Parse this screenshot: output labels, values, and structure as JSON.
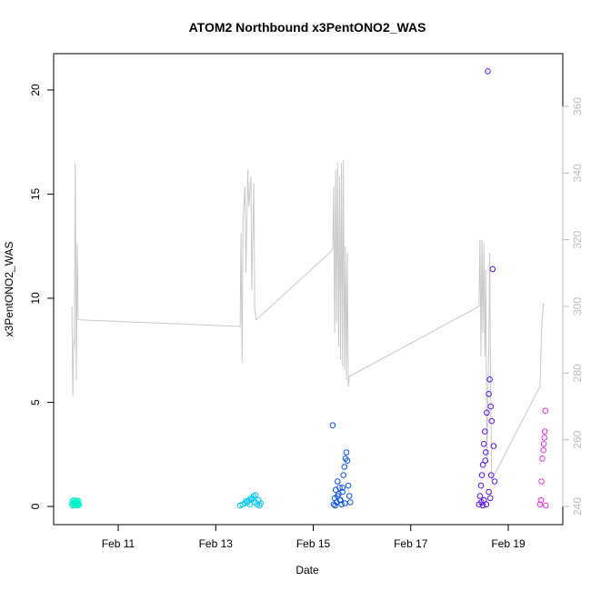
{
  "chart_data": {
    "type": "scatter",
    "title": "ATOM2 Northbound x3PentONO2_WAS",
    "xlabel": "Date",
    "ylabel": "x3PentONO2_WAS",
    "x_ticks": [
      "Feb 11",
      "Feb 13",
      "Feb 15",
      "Feb 17",
      "Feb 19"
    ],
    "x_range_days": [
      10.05,
      19.9
    ],
    "y_ticks": [
      0,
      5,
      10,
      15,
      20
    ],
    "ylim": [
      -0.6,
      21.8
    ],
    "y2_ticks": [
      240,
      260,
      280,
      300,
      320,
      340,
      360
    ],
    "y2lim": [
      237,
      377
    ],
    "grid": false,
    "colors": {
      "line": "#c8c8c8",
      "right_axis": "#bdbdbd"
    },
    "series": [
      {
        "color": "#00f0c8",
        "points": [
          [
            10.05,
            0.1
          ],
          [
            10.06,
            0.25
          ],
          [
            10.07,
            0.05
          ],
          [
            10.08,
            0.15
          ],
          [
            10.09,
            0.3
          ],
          [
            10.1,
            0.2
          ],
          [
            10.11,
            0.08
          ],
          [
            10.12,
            0.18
          ],
          [
            10.13,
            0.12
          ],
          [
            10.14,
            0.28
          ],
          [
            10.15,
            0.05
          ],
          [
            10.16,
            0.22
          ],
          [
            10.17,
            0.15
          ],
          [
            10.18,
            0.1
          ],
          [
            10.19,
            0.26
          ],
          [
            10.2,
            0.06
          ]
        ]
      },
      {
        "color": "#00c8f0",
        "points": [
          [
            13.5,
            0.05
          ],
          [
            13.55,
            0.1
          ],
          [
            13.6,
            0.15
          ],
          [
            13.62,
            0.25
          ],
          [
            13.65,
            0.2
          ],
          [
            13.68,
            0.3
          ],
          [
            13.7,
            0.1
          ],
          [
            13.72,
            0.4
          ],
          [
            13.75,
            0.35
          ],
          [
            13.78,
            0.5
          ],
          [
            13.8,
            0.2
          ],
          [
            13.82,
            0.55
          ],
          [
            13.85,
            0.1
          ],
          [
            13.88,
            0.3
          ],
          [
            13.9,
            0.05
          ],
          [
            13.92,
            0.15
          ]
        ]
      },
      {
        "color": "#0a50f0",
        "points": [
          [
            15.4,
            3.9
          ],
          [
            15.42,
            0.1
          ],
          [
            15.44,
            0.4
          ],
          [
            15.46,
            0.8
          ],
          [
            15.48,
            0.2
          ],
          [
            15.5,
            1.2
          ],
          [
            15.52,
            0.6
          ],
          [
            15.54,
            0.9
          ],
          [
            15.56,
            0.3
          ],
          [
            15.58,
            0.1
          ],
          [
            15.6,
            0.7
          ],
          [
            15.62,
            1.5
          ],
          [
            15.64,
            1.9
          ],
          [
            15.66,
            2.3
          ],
          [
            15.68,
            2.6
          ],
          [
            15.7,
            2.2
          ],
          [
            15.72,
            1.0
          ],
          [
            15.74,
            0.5
          ],
          [
            15.76,
            0.2
          ],
          [
            15.45,
            0.05
          ],
          [
            15.55,
            0.3
          ],
          [
            15.65,
            0.15
          ],
          [
            15.5,
            0.5
          ],
          [
            15.6,
            0.9
          ]
        ]
      },
      {
        "color": "#5a10f0",
        "points": [
          [
            18.4,
            0.1
          ],
          [
            18.42,
            0.5
          ],
          [
            18.44,
            1.0
          ],
          [
            18.46,
            1.5
          ],
          [
            18.48,
            2.0
          ],
          [
            18.5,
            3.0
          ],
          [
            18.52,
            3.6
          ],
          [
            18.54,
            2.6
          ],
          [
            18.56,
            4.5
          ],
          [
            18.58,
            20.9
          ],
          [
            18.6,
            5.4
          ],
          [
            18.62,
            6.1
          ],
          [
            18.64,
            4.8
          ],
          [
            18.66,
            4.1
          ],
          [
            18.68,
            11.4
          ],
          [
            18.7,
            2.9
          ],
          [
            18.72,
            1.2
          ],
          [
            18.5,
            0.3
          ],
          [
            18.55,
            0.1
          ],
          [
            18.6,
            0.7
          ],
          [
            18.65,
            1.5
          ],
          [
            18.45,
            0.2
          ],
          [
            18.48,
            0.05
          ],
          [
            18.53,
            2.2
          ],
          [
            18.63,
            0.4
          ]
        ]
      },
      {
        "color": "#e030e0",
        "points": [
          [
            19.65,
            0.1
          ],
          [
            19.67,
            0.3
          ],
          [
            19.68,
            1.2
          ],
          [
            19.7,
            2.3
          ],
          [
            19.72,
            2.7
          ],
          [
            19.73,
            3.0
          ],
          [
            19.74,
            3.3
          ],
          [
            19.75,
            3.6
          ],
          [
            19.76,
            4.6
          ],
          [
            19.77,
            0.05
          ]
        ]
      }
    ],
    "line": [
      [
        10.05,
        300
      ],
      [
        10.07,
        273
      ],
      [
        10.09,
        290
      ],
      [
        10.1,
        288
      ],
      [
        10.12,
        343
      ],
      [
        10.14,
        278
      ],
      [
        10.16,
        319
      ],
      [
        10.18,
        296
      ],
      [
        13.5,
        294
      ],
      [
        13.52,
        322
      ],
      [
        13.54,
        283
      ],
      [
        13.56,
        326
      ],
      [
        13.6,
        336
      ],
      [
        13.62,
        310
      ],
      [
        13.66,
        341
      ],
      [
        13.68,
        330
      ],
      [
        13.72,
        339
      ],
      [
        13.74,
        305
      ],
      [
        13.78,
        337
      ],
      [
        13.8,
        299
      ],
      [
        13.83,
        296
      ],
      [
        15.4,
        317
      ],
      [
        15.42,
        336
      ],
      [
        15.44,
        292
      ],
      [
        15.46,
        341
      ],
      [
        15.48,
        295
      ],
      [
        15.5,
        343
      ],
      [
        15.52,
        288
      ],
      [
        15.54,
        339
      ],
      [
        15.56,
        284
      ],
      [
        15.58,
        343
      ],
      [
        15.6,
        282
      ],
      [
        15.62,
        344
      ],
      [
        15.64,
        281
      ],
      [
        15.66,
        318
      ],
      [
        15.68,
        278
      ],
      [
        15.7,
        316
      ],
      [
        15.72,
        276
      ],
      [
        15.74,
        279
      ],
      [
        18.4,
        300
      ],
      [
        18.42,
        320
      ],
      [
        18.44,
        285
      ],
      [
        18.46,
        320
      ],
      [
        18.48,
        292
      ],
      [
        18.5,
        319
      ],
      [
        18.52,
        285
      ],
      [
        18.54,
        311
      ],
      [
        18.56,
        253
      ],
      [
        18.6,
        289
      ],
      [
        18.62,
        316
      ],
      [
        18.64,
        272
      ],
      [
        18.66,
        248
      ],
      [
        19.65,
        276
      ],
      [
        19.68,
        292
      ],
      [
        19.72,
        301
      ]
    ]
  }
}
